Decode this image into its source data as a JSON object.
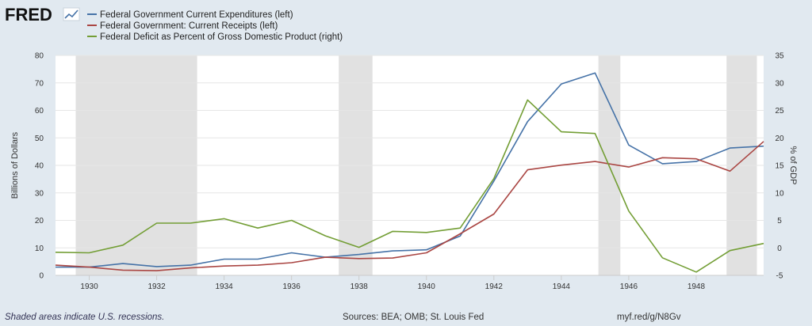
{
  "header": {
    "logo_text": "FRED",
    "logo_icon": "trend-line-icon"
  },
  "footer": {
    "note": "Shaded areas indicate U.S. recessions.",
    "sources": "Sources: BEA; OMB; St. Louis Fed",
    "link": "myf.red/g/N8Gv"
  },
  "chart_data": {
    "type": "line",
    "title": "",
    "x": [
      1929,
      1930,
      1931,
      1932,
      1933,
      1934,
      1935,
      1936,
      1937,
      1938,
      1939,
      1940,
      1941,
      1942,
      1943,
      1944,
      1945,
      1946,
      1947,
      1948,
      1949,
      1950
    ],
    "xlim": [
      1929,
      1950
    ],
    "x_ticks": [
      1930,
      1932,
      1934,
      1936,
      1938,
      1940,
      1942,
      1944,
      1946,
      1948
    ],
    "y_left": {
      "label": "Billions of Dollars",
      "ylim": [
        0,
        80
      ],
      "ticks": [
        0,
        10,
        20,
        30,
        40,
        50,
        60,
        70,
        80
      ]
    },
    "y_right": {
      "label": "% of GDP",
      "ylim": [
        -5,
        35
      ],
      "ticks": [
        -5,
        0,
        5,
        10,
        15,
        20,
        25,
        30,
        35
      ]
    },
    "recessions": [
      [
        1929.6,
        1933.2
      ],
      [
        1937.4,
        1938.4
      ],
      [
        1945.1,
        1945.75
      ],
      [
        1948.9,
        1949.8
      ]
    ],
    "recession_color": "#e1e1e1",
    "grid": true,
    "legend_position": "top-left",
    "series": [
      {
        "name": "Federal Government Current Expenditures (left)",
        "axis": "left",
        "color": "#4572a7",
        "values": [
          3.0,
          3.0,
          4.3,
          3.2,
          3.7,
          5.9,
          5.9,
          8.2,
          6.6,
          7.6,
          8.9,
          9.3,
          14.3,
          34.3,
          55.9,
          69.6,
          73.6,
          47.4,
          40.6,
          41.4,
          46.3,
          47.0
        ]
      },
      {
        "name": "Federal Government: Current Receipts (left)",
        "axis": "left",
        "color": "#aa4643",
        "values": [
          3.7,
          3.0,
          1.9,
          1.7,
          2.7,
          3.4,
          3.7,
          4.6,
          6.6,
          6.1,
          6.3,
          8.2,
          15.1,
          22.3,
          38.4,
          40.1,
          41.4,
          39.4,
          42.8,
          42.4,
          37.9,
          48.7
        ]
      },
      {
        "name": "Federal Deficit as Percent of Gross Domestic Product (right)",
        "axis": "right",
        "color": "#739e35",
        "values": [
          -0.8,
          -0.9,
          0.5,
          4.5,
          4.5,
          5.3,
          3.6,
          5.0,
          2.2,
          0.1,
          3.0,
          2.8,
          3.6,
          12.6,
          26.9,
          21.1,
          20.8,
          6.7,
          -1.8,
          -4.4,
          -0.5,
          0.8
        ]
      }
    ]
  }
}
